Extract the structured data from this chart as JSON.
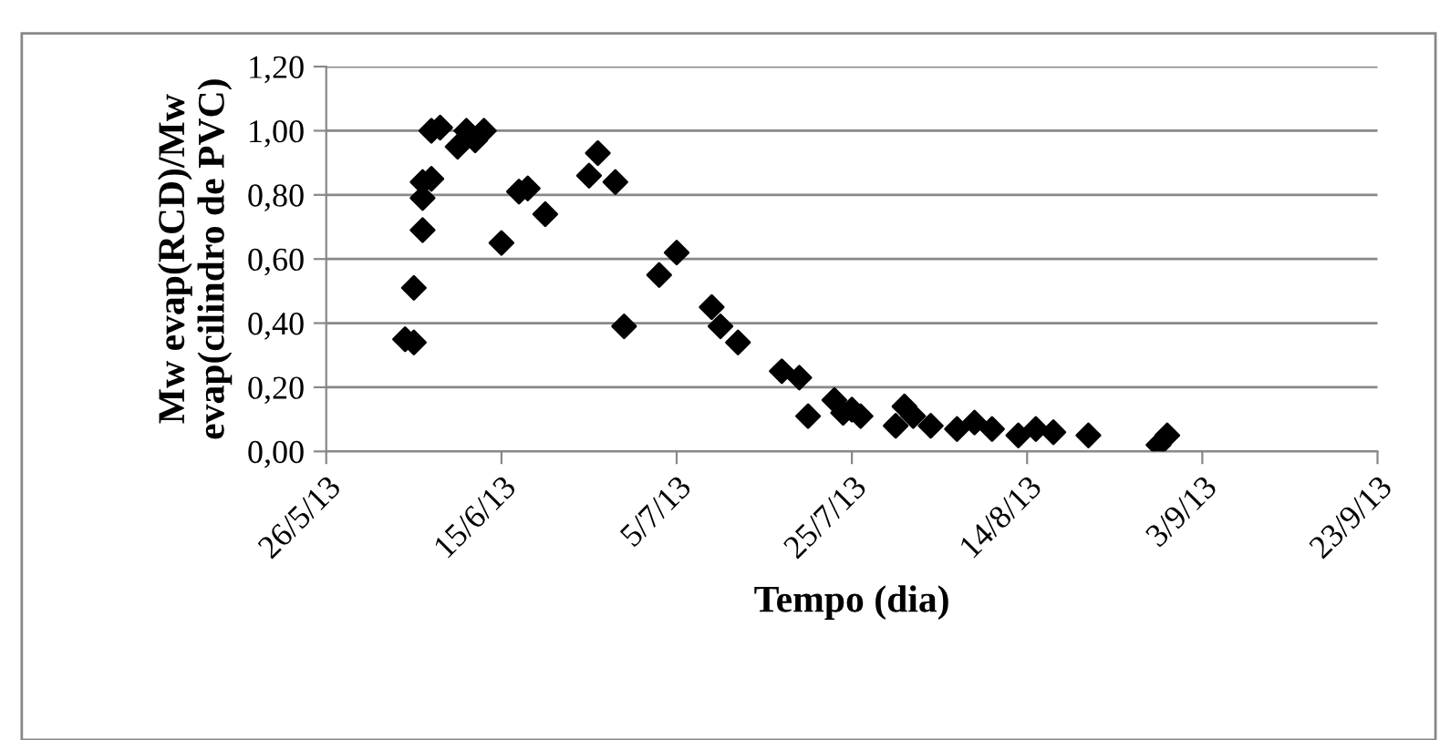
{
  "chart_data": {
    "type": "scatter",
    "xlabel": "Tempo (dia)",
    "ylabel": "Mw evap(RCD)/Mw\nevap(cilindro de PVC)",
    "marker": "diamond",
    "grid": "y",
    "legend": false,
    "xlim": [
      "2013-05-26",
      "2013-09-23"
    ],
    "xticks": [
      {
        "value": "2013-05-26",
        "label": "26/5/13"
      },
      {
        "value": "2013-06-15",
        "label": "15/6/13"
      },
      {
        "value": "2013-07-05",
        "label": "5/7/13"
      },
      {
        "value": "2013-07-25",
        "label": "25/7/13"
      },
      {
        "value": "2013-08-14",
        "label": "14/8/13"
      },
      {
        "value": "2013-09-03",
        "label": "3/9/13"
      },
      {
        "value": "2013-09-23",
        "label": "23/9/13"
      }
    ],
    "ylim": [
      0,
      1.2
    ],
    "yticks": [
      {
        "value": 0,
        "label": "0,00"
      },
      {
        "value": 0.2,
        "label": "0,20"
      },
      {
        "value": 0.4,
        "label": "0,40"
      },
      {
        "value": 0.6,
        "label": "0,60"
      },
      {
        "value": 0.8,
        "label": "0,80"
      },
      {
        "value": 1.0,
        "label": "1,00"
      },
      {
        "value": 1.2,
        "label": "1,20"
      }
    ],
    "series": [
      {
        "color": "#000000",
        "x": [
          "2013-06-04",
          "2013-06-05",
          "2013-06-05",
          "2013-06-06",
          "2013-06-06",
          "2013-06-06",
          "2013-06-07",
          "2013-06-07",
          "2013-06-08",
          "2013-06-10",
          "2013-06-11",
          "2013-06-12",
          "2013-06-13",
          "2013-06-15",
          "2013-06-17",
          "2013-06-18",
          "2013-06-20",
          "2013-06-25",
          "2013-06-26",
          "2013-06-28",
          "2013-06-29",
          "2013-07-03",
          "2013-07-05",
          "2013-07-09",
          "2013-07-10",
          "2013-07-12",
          "2013-07-17",
          "2013-07-19",
          "2013-07-20",
          "2013-07-23",
          "2013-07-24",
          "2013-07-25",
          "2013-07-26",
          "2013-07-30",
          "2013-07-31",
          "2013-08-01",
          "2013-08-03",
          "2013-08-06",
          "2013-08-08",
          "2013-08-10",
          "2013-08-13",
          "2013-08-15",
          "2013-08-17",
          "2013-08-21",
          "2013-08-29",
          "2013-08-30"
        ],
        "values": [
          0.35,
          0.34,
          0.51,
          0.69,
          0.79,
          0.84,
          0.85,
          1.0,
          1.01,
          0.95,
          1.0,
          0.97,
          1.0,
          0.65,
          0.81,
          0.82,
          0.74,
          0.86,
          0.93,
          0.84,
          0.39,
          0.55,
          0.62,
          0.45,
          0.39,
          0.34,
          0.25,
          0.23,
          0.11,
          0.16,
          0.12,
          0.13,
          0.11,
          0.08,
          0.14,
          0.11,
          0.08,
          0.07,
          0.09,
          0.07,
          0.05,
          0.07,
          0.06,
          0.05,
          0.02,
          0.05
        ]
      }
    ]
  }
}
